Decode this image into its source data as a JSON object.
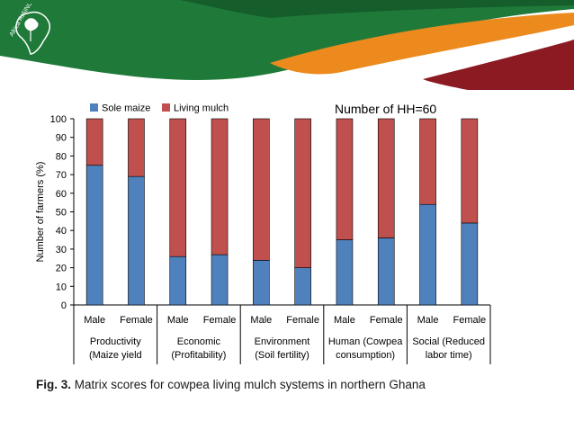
{
  "logo": {
    "text": "Africa RISING"
  },
  "chart_data": {
    "type": "bar",
    "stacked": true,
    "annotation": "Number of HH=60",
    "ylabel": "Number of farmers (%)",
    "ylim": [
      0,
      100
    ],
    "yticks": [
      0,
      10,
      20,
      30,
      40,
      50,
      60,
      70,
      80,
      90,
      100
    ],
    "categories": [
      "Male",
      "Female",
      "Male",
      "Female",
      "Male",
      "Female",
      "Male",
      "Female",
      "Male",
      "Female"
    ],
    "groups": [
      {
        "line1": "Productivity",
        "line2": "(Maize yield"
      },
      {
        "line1": "Economic",
        "line2": "(Profitability)"
      },
      {
        "line1": "Environment",
        "line2": "(Soil fertility)"
      },
      {
        "line1": "Human (Cowpea",
        "line2": "consumption)"
      },
      {
        "line1": "Social (Reduced",
        "line2": "labor time)"
      }
    ],
    "series": [
      {
        "name": "Sole maize",
        "color": "#4f81bd",
        "values": [
          75,
          69,
          26,
          27,
          24,
          20,
          35,
          36,
          54,
          44
        ]
      },
      {
        "name": "Living mulch",
        "color": "#c0504d",
        "values": [
          25,
          31,
          74,
          73,
          76,
          80,
          65,
          64,
          46,
          56
        ]
      }
    ],
    "legend_position": "top-left",
    "grid": false
  },
  "caption": {
    "label": "Fig. 3.",
    "text": " Matrix scores for cowpea living mulch systems in northern Ghana"
  }
}
